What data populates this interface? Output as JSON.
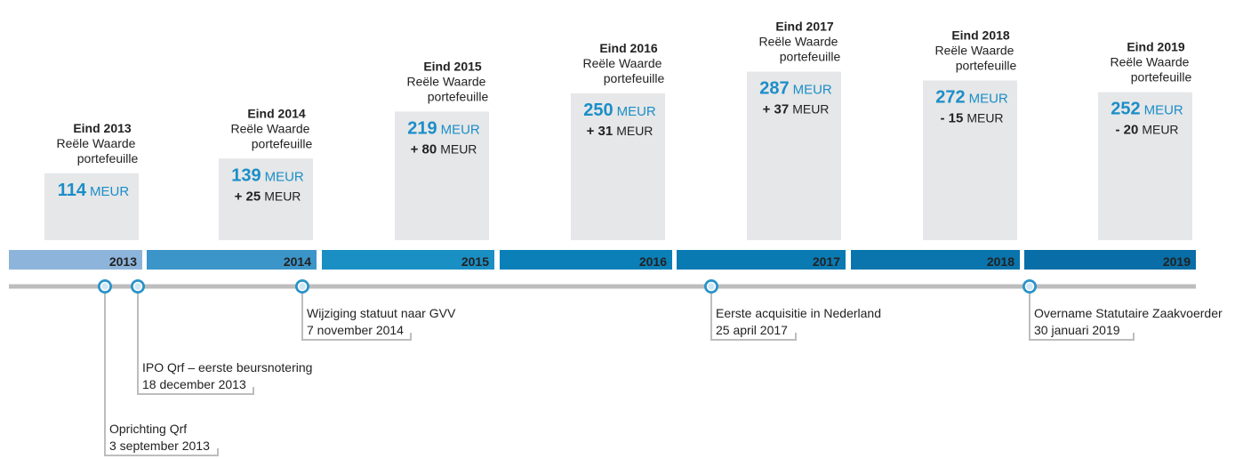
{
  "columns": [
    {
      "heading": "Eind 2013",
      "line_1": "Reële Waarde",
      "line_2": "portefeuille",
      "value": 114,
      "unit": "MEUR"
    },
    {
      "heading": "Eind 2014",
      "line_1": "Reële Waarde",
      "line_2": "portefeuille",
      "value": 139,
      "unit": "MEUR",
      "change": "+ 25",
      "change_unit": "MEUR"
    },
    {
      "heading": "Eind 2015",
      "line_1": "Reële Waarde",
      "line_2": "portefeuille",
      "value": 219,
      "unit": "MEUR",
      "change": "+ 80",
      "change_unit": "MEUR"
    },
    {
      "heading": "Eind 2016",
      "line_1": "Reële Waarde",
      "line_2": "portefeuille",
      "value": 250,
      "unit": "MEUR",
      "change": "+ 31",
      "change_unit": "MEUR"
    },
    {
      "heading": "Eind 2017",
      "line_1": "Reële Waarde",
      "line_2": "portefeuille",
      "value": 287,
      "unit": "MEUR",
      "change": "+ 37",
      "change_unit": "MEUR"
    },
    {
      "heading": "Eind 2018",
      "line_1": "Reële Waarde",
      "line_2": "portefeuille",
      "value": 272,
      "unit": "MEUR",
      "change": "- 15",
      "change_unit": "MEUR"
    },
    {
      "heading": "Eind 2019",
      "line_1": "Reële Waarde",
      "line_2": "portefeuille",
      "value": 252,
      "unit": "MEUR",
      "change": "- 20",
      "change_unit": "MEUR"
    }
  ],
  "years": [
    "2013",
    "2014",
    "2015",
    "2016",
    "2017",
    "2018",
    "2019"
  ],
  "events": [
    {
      "title": "Oprichting Qrf",
      "date": "3 september 2013"
    },
    {
      "title": "IPO Qrf – eerste beursnotering",
      "date": "18 december 2013"
    },
    {
      "title": "Wijziging statuut naar GVV",
      "date": "7 november 2014"
    },
    {
      "title": "Eerste acquisitie in Nederland",
      "date": "25 april 2017"
    },
    {
      "title": "Overname Statutaire Zaakvoerder",
      "date": "30 januari 2019"
    }
  ]
}
